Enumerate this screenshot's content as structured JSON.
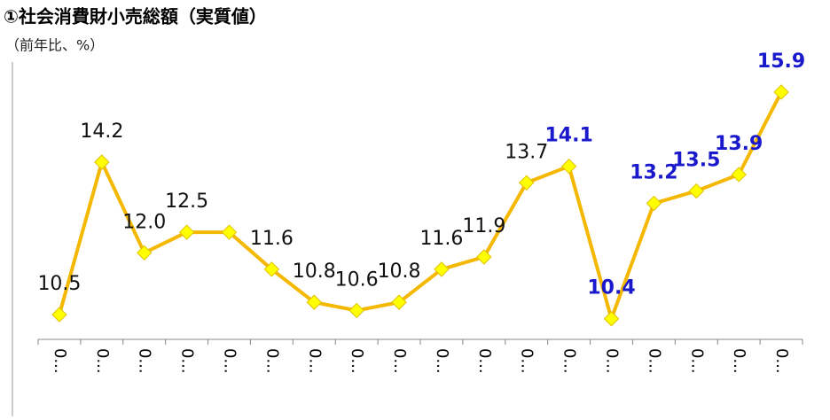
{
  "chart_data": {
    "type": "line",
    "title": "①社会消費財小売総額（実質値）",
    "subtitle": "（前年比、%）",
    "categories": [
      "0...",
      "0...",
      "0...",
      "0...",
      "0...",
      "0...",
      "0...",
      "0...",
      "0...",
      "0...",
      "0...",
      "0...",
      "0...",
      "0...",
      "0...",
      "0...",
      "0...",
      "0..."
    ],
    "series": [
      {
        "name": "社会消費財小売総額",
        "color": "#f5b800",
        "marker_color": "#ffff00",
        "values": [
          10.5,
          14.2,
          12.0,
          12.5,
          12.5,
          11.6,
          10.8,
          10.6,
          10.8,
          11.6,
          11.9,
          13.7,
          14.1,
          10.4,
          13.2,
          13.5,
          13.9,
          15.9
        ],
        "value_labels": [
          "10.5",
          "14.2",
          "12.0",
          "12.5",
          null,
          "11.6",
          "10.8",
          "10.6",
          "10.8",
          "11.6",
          "11.9",
          "13.7",
          "14.1",
          "10.4",
          "13.2",
          "13.5",
          "13.9",
          "15.9"
        ],
        "value_label_colors": [
          "#111",
          "#111",
          "#111",
          "#111",
          "#111",
          "#111",
          "#111",
          "#111",
          "#111",
          "#111",
          "#111",
          "#111",
          "#1a1acc",
          "#1a1acc",
          "#1a1acc",
          "#1a1acc",
          "#1a1acc",
          "#1a1acc"
        ]
      }
    ],
    "ylim": [
      9.9,
      16.2
    ]
  }
}
